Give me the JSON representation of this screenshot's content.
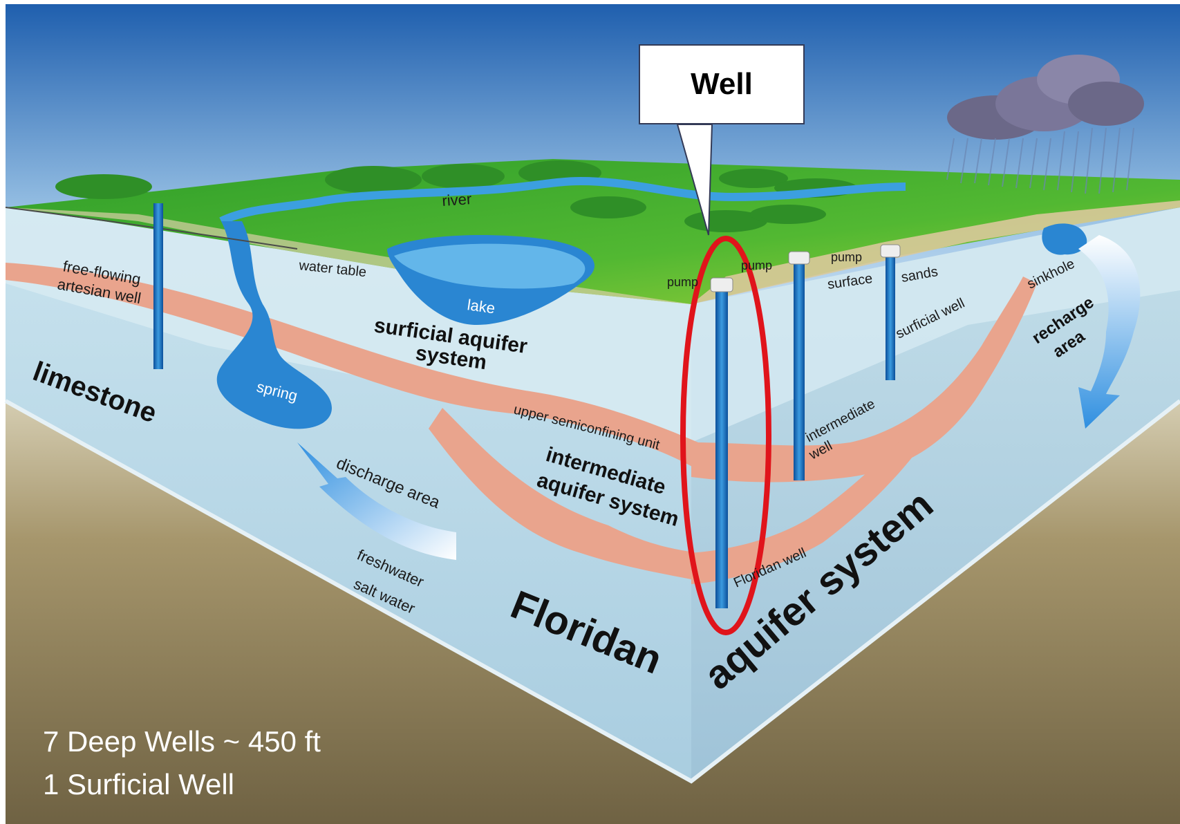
{
  "callout": {
    "label": "Well"
  },
  "labels": {
    "free_flowing": "free-flowing",
    "artesian_well": "artesian well",
    "river": "river",
    "water_table": "water table",
    "lake": "lake",
    "surficial_aquifer_1": "surficial aquifer",
    "surficial_aquifer_2": "system",
    "limestone": "limestone",
    "spring": "spring",
    "discharge_area": "discharge area",
    "freshwater": "freshwater",
    "salt_water": "salt water",
    "upper_semiconfining": "upper semiconfining unit",
    "intermediate_1": "intermediate",
    "intermediate_2": "aquifer system",
    "floridan": "Floridan",
    "aquifer_system": "aquifer system",
    "floridan_well": "Floridan well",
    "intermediate_well_1": "intermediate",
    "intermediate_well_2": "well",
    "surficial_well": "surficial well",
    "pump_1": "pump",
    "pump_2": "pump",
    "pump_3": "pump",
    "surface": "surface",
    "sands": "sands",
    "sinkhole": "sinkhole",
    "recharge_1": "recharge",
    "recharge_2": "area"
  },
  "footnote": {
    "line1": "7 Deep Wells ~ 450 ft",
    "line2": "1 Surficial Well"
  },
  "colors": {
    "sky_top": "#1f5fae",
    "sky_bottom": "#eaf3fb",
    "grass": "#3fae2e",
    "water": "#2e8fd6",
    "confining": "#e8a58e",
    "aquifer": "#b9d8e6",
    "ground": "#8a7a55",
    "highlight": "#e0141b"
  }
}
